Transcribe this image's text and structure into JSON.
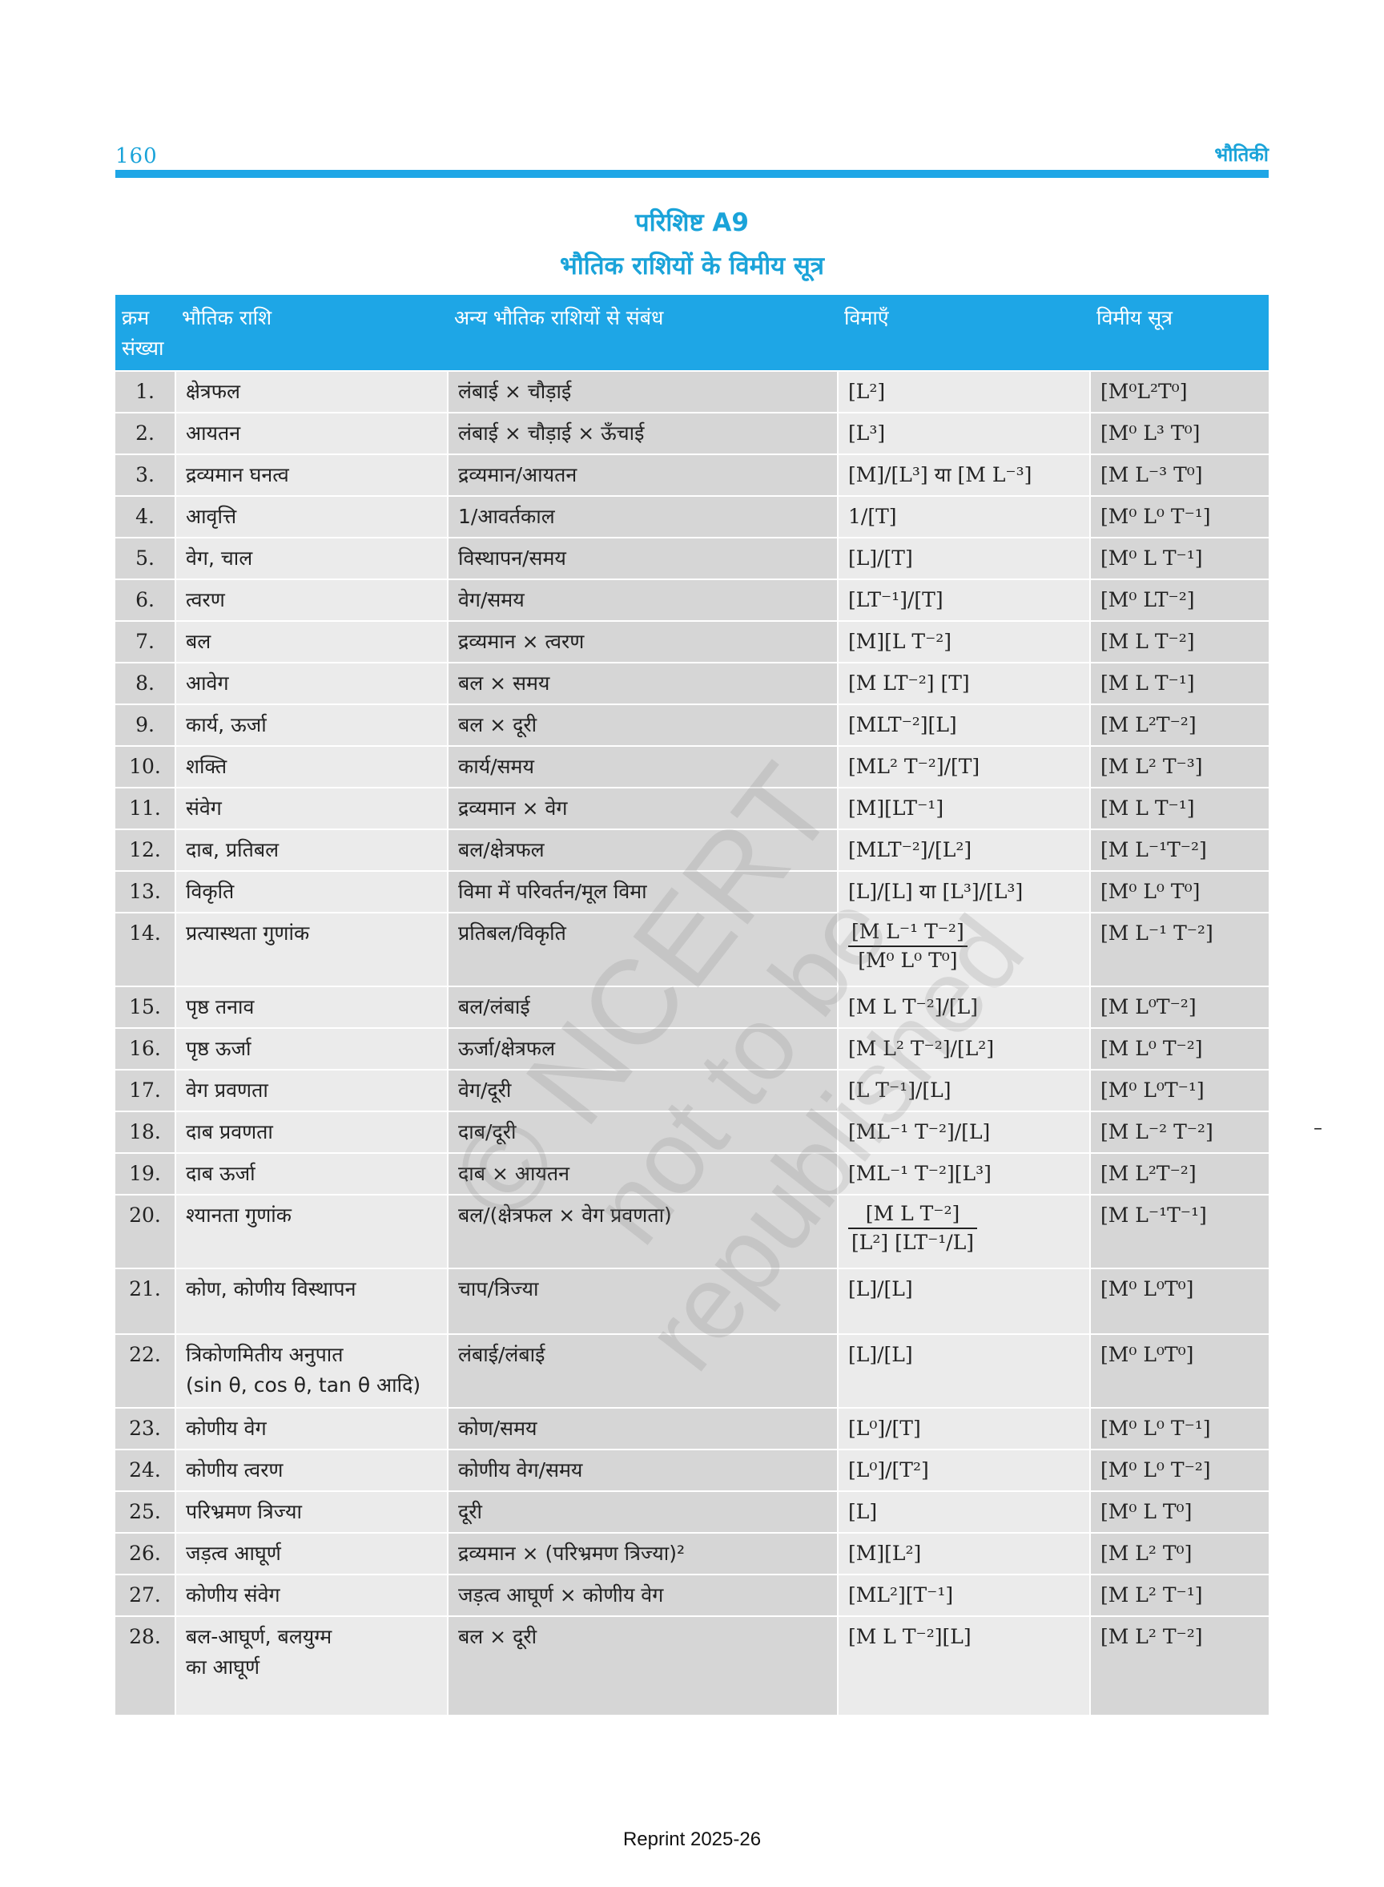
{
  "header": {
    "page_number": "160",
    "running_head": "भौतिकी"
  },
  "appendix_title": "परिशिष्ट A9",
  "table_title": "भौतिक राशियों के विमीय सूत्र",
  "columns": [
    "क्रम संख्या",
    "भौतिक राशि",
    "अन्य भौतिक राशियों से संबंध",
    "विमाएँ",
    "विमीय सूत्र"
  ],
  "rows": [
    {
      "n": "1.",
      "q": "क्षेत्रफल",
      "rel": "लंबाई × चौड़ाई",
      "dim": "[L²]",
      "formula": "[M⁰L²T⁰]"
    },
    {
      "n": "2.",
      "q": "आयतन",
      "rel": "लंबाई × चौड़ाई × ऊँचाई",
      "dim": "[L³]",
      "formula": "[M⁰ L³ T⁰]"
    },
    {
      "n": "3.",
      "q": "द्रव्यमान घनत्व",
      "rel": "द्रव्यमान/आयतन",
      "dim": "[M]/[L³] या [M L⁻³]",
      "formula": "[M L⁻³ T⁰]"
    },
    {
      "n": "4.",
      "q": "आवृत्ति",
      "rel": "1/आवर्तकाल",
      "dim": "1/[T]",
      "formula": "[M⁰ L⁰ T⁻¹]"
    },
    {
      "n": "5.",
      "q": "वेग, चाल",
      "rel": "विस्थापन/समय",
      "dim": "[L]/[T]",
      "formula": "[M⁰ L T⁻¹]"
    },
    {
      "n": "6.",
      "q": "त्वरण",
      "rel": "वेग/समय",
      "dim": "[LT⁻¹]/[T]",
      "formula": "[M⁰ LT⁻²]"
    },
    {
      "n": "7.",
      "q": "बल",
      "rel": "द्रव्यमान × त्वरण",
      "dim": "[M][L T⁻²]",
      "formula": "[M L T⁻²]"
    },
    {
      "n": "8.",
      "q": "आवेग",
      "rel": "बल × समय",
      "dim": "[M LT⁻²] [T]",
      "formula": "[M L T⁻¹]"
    },
    {
      "n": "9.",
      "q": "कार्य, ऊर्जा",
      "rel": "बल × दूरी",
      "dim": "[MLT⁻²][L]",
      "formula": "[M L²T⁻²]"
    },
    {
      "n": "10.",
      "q": "शक्ति",
      "rel": "कार्य/समय",
      "dim": "[ML² T⁻²]/[T]",
      "formula": "[M L² T⁻³]"
    },
    {
      "n": "11.",
      "q": "संवेग",
      "rel": "द्रव्यमान × वेग",
      "dim": "[M][LT⁻¹]",
      "formula": "[M L T⁻¹]"
    },
    {
      "n": "12.",
      "q": "दाब, प्रतिबल",
      "rel": "बल/क्षेत्रफल",
      "dim": "[MLT⁻²]/[L²]",
      "formula": "[M L⁻¹T⁻²]"
    },
    {
      "n": "13.",
      "q": "विकृति",
      "rel": "विमा में परिवर्तन/मूल विमा",
      "dim": "[L]/[L] या [L³]/[L³]",
      "formula": "[M⁰ L⁰ T⁰]"
    },
    {
      "n": "14.",
      "q": "प्रत्यास्थता गुणांक",
      "rel": "प्रतिबल/विकृति",
      "dim_num": "[M L⁻¹ T⁻²]",
      "dim_den": "[M⁰ L⁰ T⁰]",
      "formula": "[M L⁻¹ T⁻²]"
    },
    {
      "n": "15.",
      "q": "पृष्ठ तनाव",
      "rel": "बल/लंबाई",
      "dim": "[M L T⁻²]/[L]",
      "formula": "[M L⁰T⁻²]"
    },
    {
      "n": "16.",
      "q": "पृष्ठ ऊर्जा",
      "rel": "ऊर्जा/क्षेत्रफल",
      "dim": "[M L² T⁻²]/[L²]",
      "formula": "[M L⁰ T⁻²]"
    },
    {
      "n": "17.",
      "q": "वेग प्रवणता",
      "rel": "वेग/दूरी",
      "dim": "[L T⁻¹]/[L]",
      "formula": "[M⁰ L⁰T⁻¹]"
    },
    {
      "n": "18.",
      "q": "दाब प्रवणता",
      "rel": "दाब/दूरी",
      "dim": "[ML⁻¹ T⁻²]/[L]",
      "formula": "[M L⁻² T⁻²]"
    },
    {
      "n": "19.",
      "q": "दाब ऊर्जा",
      "rel": "दाब × आयतन",
      "dim": "[ML⁻¹ T⁻²][L³]",
      "formula": "[M L²T⁻²]"
    },
    {
      "n": "20.",
      "q": "श्यानता गुणांक",
      "rel": "बल/(क्षेत्रफल × वेग प्रवणता)",
      "dim_num": "[M L T⁻²]",
      "dim_den": "[L²] [LT⁻¹/L]",
      "formula": "[M L⁻¹T⁻¹]"
    },
    {
      "n": "21.",
      "q": "कोण, कोणीय विस्थापन",
      "rel": "चाप/त्रिज्या",
      "dim": "[L]/[L]",
      "formula": "[M⁰ L⁰T⁰]"
    },
    {
      "n": "22.",
      "q": "त्रिकोणमितीय अनुपात",
      "q2": "(sin θ, cos θ, tan θ आदि)",
      "rel": "लंबाई/लंबाई",
      "dim": "[L]/[L]",
      "formula": "[M⁰ L⁰T⁰]"
    },
    {
      "n": "23.",
      "q": "कोणीय वेग",
      "rel": "कोण/समय",
      "dim": "[L⁰]/[T]",
      "formula": "[M⁰ L⁰ T⁻¹]"
    },
    {
      "n": "24.",
      "q": "कोणीय त्वरण",
      "rel": "कोणीय वेग/समय",
      "dim": "[L⁰]/[T²]",
      "formula": "[M⁰ L⁰ T⁻²]"
    },
    {
      "n": "25.",
      "q": "परिभ्रमण त्रिज्या",
      "rel": "दूरी",
      "dim": "[L]",
      "formula": "[M⁰ L T⁰]"
    },
    {
      "n": "26.",
      "q": "जड़त्व आघूर्ण",
      "rel": "द्रव्यमान × (परिभ्रमण त्रिज्या)²",
      "dim": "[M][L²]",
      "formula": "[M L² T⁰]"
    },
    {
      "n": "27.",
      "q": "कोणीय संवेग",
      "rel": "जड़त्व आघूर्ण × कोणीय वेग",
      "dim": "[ML²][T⁻¹]",
      "formula": "[M L² T⁻¹]"
    },
    {
      "n": "28.",
      "q": "बल-आघूर्ण, बलयुग्म",
      "q2": "का आघूर्ण",
      "rel": "बल × दूरी",
      "dim": "[M L T⁻²][L]",
      "formula": "[M L² T⁻²]"
    }
  ],
  "watermark": {
    "line1": "© NCERT",
    "line2": "not to be republished"
  },
  "margin_mark": "–",
  "footer": "Reprint 2025-26",
  "colors": {
    "accent": "#1ea6e6",
    "cell_dark": "#d6d6d6",
    "cell_light": "#ebebeb"
  }
}
